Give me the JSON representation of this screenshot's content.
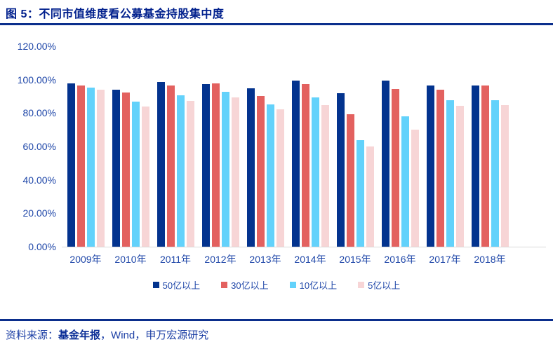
{
  "title": "图 5：不同市值维度看公募基金持股集中度",
  "footer": {
    "prefix": "资料来源：",
    "bold": "基金年报",
    "rest": "，Wind，申万宏源研究"
  },
  "colors": {
    "accent_rule": "#0B2E8C",
    "title_text": "#01208D",
    "axis_text": "#1E46A8",
    "baseline": "#D8D8D8"
  },
  "chart_data": {
    "type": "bar",
    "title": "不同市值维度看公募基金持股集中度",
    "categories": [
      "2009年",
      "2010年",
      "2011年",
      "2012年",
      "2013年",
      "2014年",
      "2015年",
      "2016年",
      "2017年",
      "2018年"
    ],
    "series": [
      {
        "name": "50亿以上",
        "color": "#03338E",
        "values": [
          98.3,
          94.2,
          98.8,
          97.7,
          95.0,
          100.0,
          92.4,
          100.0,
          96.8,
          96.7
        ]
      },
      {
        "name": "30亿以上",
        "color": "#E3615F",
        "values": [
          96.9,
          92.5,
          96.9,
          98.0,
          90.4,
          97.7,
          79.6,
          94.9,
          94.5,
          96.8
        ]
      },
      {
        "name": "10亿以上",
        "color": "#63D2FB",
        "values": [
          95.4,
          87.3,
          91.0,
          93.0,
          85.5,
          89.8,
          64.0,
          78.2,
          87.8,
          88.0
        ]
      },
      {
        "name": "5亿以上",
        "color": "#F7D5D6",
        "values": [
          94.3,
          84.2,
          87.7,
          89.8,
          82.6,
          85.2,
          60.4,
          70.3,
          84.6,
          84.9
        ]
      }
    ],
    "xlabel": "",
    "ylabel": "",
    "ylim": [
      0,
      120
    ],
    "yticks": [
      "120.00%",
      "100.00%",
      "80.00%",
      "60.00%",
      "40.00%",
      "20.00%",
      "0.00%"
    ],
    "grid": false,
    "legend_position": "bottom"
  }
}
